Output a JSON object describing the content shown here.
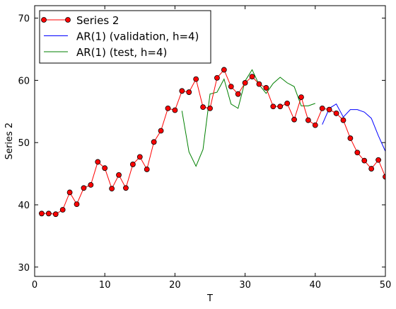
{
  "chart_data": {
    "type": "line",
    "xlabel": "T",
    "ylabel": "Series 2",
    "xlim": [
      0,
      50
    ],
    "ylim": [
      28.5,
      72
    ],
    "xticks": [
      0,
      10,
      20,
      30,
      40,
      50
    ],
    "yticks": [
      30,
      40,
      50,
      60,
      70
    ],
    "grid": false,
    "legend_position": "top-left",
    "series": [
      {
        "name": "Series 2",
        "color": "#ff0000",
        "marker": "circle",
        "x": [
          1,
          2,
          3,
          4,
          5,
          6,
          7,
          8,
          9,
          10,
          11,
          12,
          13,
          14,
          15,
          16,
          17,
          18,
          19,
          20,
          21,
          22,
          23,
          24,
          25,
          26,
          27,
          28,
          29,
          30,
          31,
          32,
          33,
          34,
          35,
          36,
          37,
          38,
          39,
          40,
          41,
          42,
          43,
          44,
          45,
          46,
          47,
          48,
          49,
          50
        ],
        "y": [
          38.6,
          38.6,
          38.5,
          39.2,
          42.0,
          40.1,
          42.7,
          43.2,
          46.9,
          45.9,
          42.6,
          44.8,
          42.7,
          46.5,
          47.7,
          45.7,
          50.1,
          51.9,
          55.5,
          55.2,
          58.3,
          58.1,
          60.2,
          55.7,
          55.5,
          60.4,
          61.7,
          59.0,
          57.8,
          59.6,
          60.6,
          59.4,
          58.8,
          55.8,
          55.8,
          56.3,
          53.7,
          57.3,
          53.6,
          52.8,
          55.5,
          55.3,
          54.7,
          53.6,
          50.7,
          48.4,
          47.1,
          45.8,
          47.2,
          44.5
        ]
      },
      {
        "name": "AR(1) (validation, h=4)",
        "color": "#0000ff",
        "marker": "none",
        "x": [
          41,
          42,
          43,
          44,
          45,
          46,
          47,
          48,
          49,
          50
        ],
        "y": [
          52.9,
          55.5,
          56.2,
          54.1,
          55.3,
          55.3,
          54.9,
          53.9,
          51.1,
          48.6
        ]
      },
      {
        "name": "AR(1) (test, h=4)",
        "color": "#008000",
        "marker": "none",
        "x": [
          21,
          22,
          23,
          24,
          25,
          26,
          27,
          28,
          29,
          30,
          31,
          32,
          33,
          34,
          35,
          36,
          37,
          38,
          39,
          40
        ],
        "y": [
          55.1,
          48.5,
          46.2,
          48.9,
          57.8,
          58.1,
          60.2,
          56.2,
          55.5,
          59.9,
          61.7,
          59.3,
          57.9,
          59.5,
          60.5,
          59.6,
          59.0,
          55.9,
          55.9,
          56.3
        ]
      }
    ]
  }
}
